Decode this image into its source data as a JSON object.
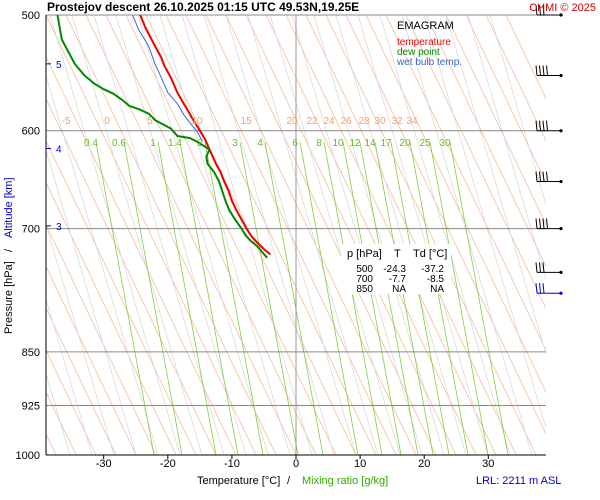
{
  "chart_data": {
    "type": "line",
    "title": "Prostejov   descent   26.10.2025 01:15 UTC  49.53N,19.25E",
    "copyright": "CHMI © 2025",
    "xlabel_temp": "Temperature [°C]",
    "xlabel_sep": "/",
    "xlabel_mix": "Mixing ratio [g/kg]",
    "ylabel_pres": "Pressure [hPa]",
    "ylabel_sep": "/",
    "ylabel_alt": "Altitude [km]",
    "lrl_label": "LRL: 2211 m ASL",
    "temp_ticks": [
      -30,
      -20,
      -10,
      0,
      10,
      20,
      30
    ],
    "xlim": [
      -39,
      39
    ],
    "pressure_levels": [
      500,
      600,
      700,
      850,
      925,
      1000
    ],
    "ylim": [
      500,
      1000
    ],
    "altitude_ticks": [
      {
        "label": "5",
        "p": 540
      },
      {
        "label": "4",
        "p": 617
      },
      {
        "label": "3",
        "p": 697
      }
    ],
    "dry_adiabat_labels": [
      "-5",
      "0",
      "5",
      "10",
      "15",
      "20",
      "22",
      "24",
      "26",
      "28",
      "30",
      "32",
      "34"
    ],
    "mixing_ratio_labels": [
      "0.4",
      "0.6",
      "1",
      "1.4",
      "2",
      "3",
      "4",
      "6",
      "8",
      "10",
      "12",
      "14",
      "17",
      "20",
      "25",
      "30"
    ],
    "legend": {
      "title": "EMAGRAM",
      "items": [
        {
          "name": "temperature",
          "color": "#ee0000"
        },
        {
          "name": "dew point",
          "color": "#008800"
        },
        {
          "name": "wet bulb temp.",
          "color": "#3366cc"
        }
      ]
    },
    "table": {
      "headers": [
        "p [hPa]",
        "T",
        "Td [°C]"
      ],
      "rows": [
        [
          "500",
          "-24.3",
          "-37.2"
        ],
        [
          "700",
          "-7.7",
          "-8.5"
        ],
        [
          "850",
          "NA",
          "NA"
        ]
      ]
    },
    "series": [
      {
        "name": "temperature",
        "points": [
          [
            -24.3,
            500
          ],
          [
            -23.5,
            510
          ],
          [
            -22,
            525
          ],
          [
            -21,
            535
          ],
          [
            -20.5,
            542
          ],
          [
            -19.5,
            552
          ],
          [
            -18.5,
            565
          ],
          [
            -17.5,
            575
          ],
          [
            -16.8,
            582
          ],
          [
            -16,
            590
          ],
          [
            -15,
            600
          ],
          [
            -14.2,
            608
          ],
          [
            -13.5,
            618
          ],
          [
            -13,
            625
          ],
          [
            -12.5,
            632
          ],
          [
            -11.8,
            640
          ],
          [
            -11.2,
            650
          ],
          [
            -10.5,
            660
          ],
          [
            -10,
            670
          ],
          [
            -9.3,
            680
          ],
          [
            -8.5,
            690
          ],
          [
            -7.7,
            700
          ],
          [
            -7,
            708
          ],
          [
            -6,
            716
          ],
          [
            -5,
            723
          ],
          [
            -4,
            729
          ]
        ]
      },
      {
        "name": "dew point",
        "points": [
          [
            -37.2,
            500
          ],
          [
            -36.8,
            512
          ],
          [
            -36.5,
            520
          ],
          [
            -35.5,
            530
          ],
          [
            -34.5,
            540
          ],
          [
            -33,
            550
          ],
          [
            -31.5,
            557
          ],
          [
            -30,
            562
          ],
          [
            -28.5,
            566
          ],
          [
            -27,
            572
          ],
          [
            -26,
            577
          ],
          [
            -24.5,
            580
          ],
          [
            -23,
            584
          ],
          [
            -22,
            590
          ],
          [
            -19.5,
            598
          ],
          [
            -18.5,
            605
          ],
          [
            -16.5,
            607
          ],
          [
            -15,
            612
          ],
          [
            -13.5,
            618
          ],
          [
            -14,
            625
          ],
          [
            -13.8,
            632
          ],
          [
            -12.8,
            640
          ],
          [
            -12,
            650
          ],
          [
            -11.5,
            660
          ],
          [
            -11,
            670
          ],
          [
            -10.4,
            680
          ],
          [
            -9.5,
            690
          ],
          [
            -8.5,
            700
          ],
          [
            -7.8,
            708
          ],
          [
            -7,
            714
          ],
          [
            -6,
            720
          ],
          [
            -5.2,
            727
          ],
          [
            -4.5,
            733
          ]
        ]
      },
      {
        "name": "wet bulb temp.",
        "points": [
          [
            -25.5,
            500
          ],
          [
            -24.5,
            512
          ],
          [
            -23,
            525
          ],
          [
            -22,
            540
          ],
          [
            -21,
            552
          ],
          [
            -20,
            565
          ],
          [
            -18.5,
            575
          ],
          [
            -17.5,
            585
          ],
          [
            -16.5,
            593
          ],
          [
            -15.5,
            600
          ],
          [
            -14.6,
            610
          ]
        ]
      }
    ],
    "wind_barbs": [
      {
        "p": 500,
        "barbs": 3,
        "color": "#000000"
      },
      {
        "p": 550,
        "barbs": 4,
        "color": "#000000"
      },
      {
        "p": 600,
        "barbs": 4,
        "color": "#000000"
      },
      {
        "p": 650,
        "barbs": 4,
        "color": "#000000"
      },
      {
        "p": 700,
        "barbs": 4,
        "color": "#000000"
      },
      {
        "p": 750,
        "barbs": 3,
        "color": "#000000"
      },
      {
        "p": 775,
        "barbs": 3,
        "color": "#0000cc"
      }
    ]
  }
}
